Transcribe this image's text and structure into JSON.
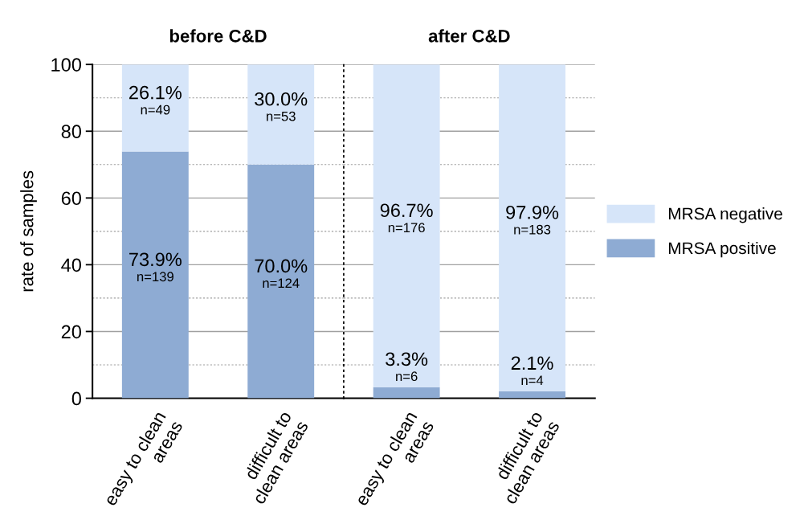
{
  "chart_data": [
    {
      "type": "bar",
      "title": "before C&D",
      "stacked": true,
      "ylabel": "rate of samples",
      "categories": [
        "easy to clean\nareas",
        "difficult to\nclean areas"
      ],
      "series": [
        {
          "color": "#8eabd3",
          "values": [
            73.9,
            70.0
          ],
          "value_labels": [
            "73.9%\nn=139",
            "70.0%\nn=124"
          ]
        },
        {
          "color": "#d6e5f9",
          "values": [
            26.1,
            30.0
          ],
          "value_labels": [
            "26.1%\nn=49",
            "30.0%\nn=53"
          ]
        }
      ],
      "ylim": [
        0,
        100
      ],
      "yticks": [
        0,
        {
          "value": 10,
          "label": null
        },
        20,
        {
          "value": 30,
          "label": null
        },
        40,
        {
          "value": 50,
          "label": null
        },
        60,
        {
          "value": 70,
          "label": null
        },
        80,
        {
          "value": 90,
          "label": null
        },
        100
      ],
      "grid": "y",
      "legend": false
    },
    {
      "type": "bar",
      "title": "after C&D",
      "stacked": true,
      "categories": [
        "easy to clean\nareas",
        "difficult to\nclean areas"
      ],
      "series": [
        {
          "name": "MRSA positive",
          "color": "#8eabd3",
          "values": [
            3.3,
            2.1
          ],
          "value_labels": [
            "3.3%\nn=6",
            "2.1%\nn=4"
          ]
        },
        {
          "name": "MRSA negative",
          "color": "#d6e5f9",
          "values": [
            96.7,
            97.9
          ],
          "value_labels": [
            "96.7%\nn=176",
            "97.9%\nn=183"
          ]
        }
      ],
      "ylim": [
        0,
        100
      ],
      "yticks": [
        0,
        {
          "value": 10,
          "label": null
        },
        20,
        {
          "value": 30,
          "label": null
        },
        40,
        {
          "value": 50,
          "label": null
        },
        60,
        {
          "value": 70,
          "label": null
        },
        80,
        {
          "value": 90,
          "label": null
        },
        100
      ],
      "grid": "y",
      "tick_labels": "x",
      "legend": "right"
    }
  ]
}
